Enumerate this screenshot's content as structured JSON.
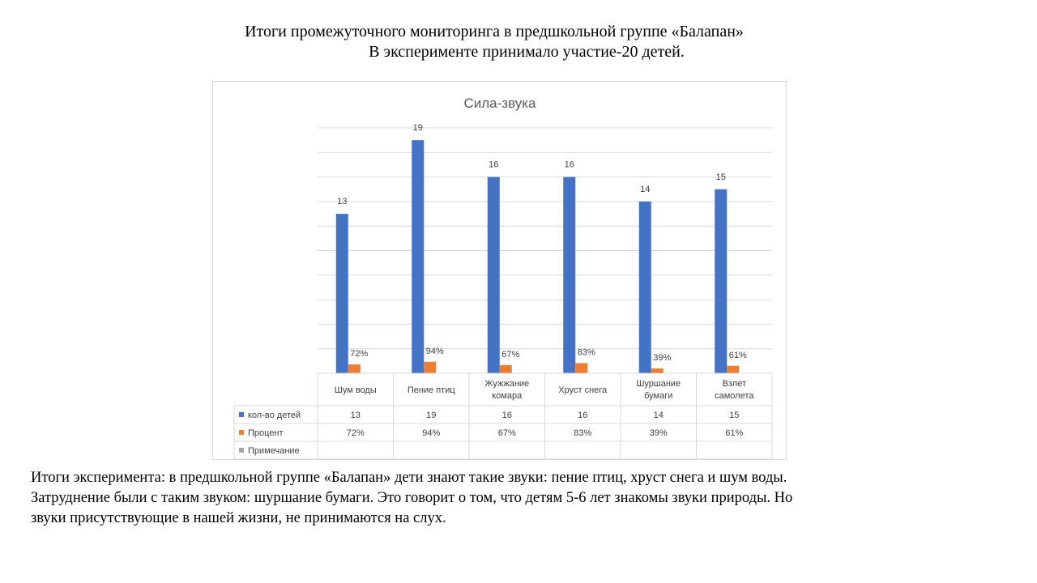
{
  "header": {
    "title": "Итоги промежуточного мониторинга в предшкольной группе «Балапан»",
    "subtitle": "В эксперименте принимало участие-20 детей."
  },
  "chart_data": {
    "type": "bar",
    "title": "Сила-звука",
    "categories": [
      [
        "Шум воды"
      ],
      [
        "Пение птиц"
      ],
      [
        "Жужжание",
        "комара"
      ],
      [
        "Хруст снега"
      ],
      [
        "Шуршание",
        "бумаги"
      ],
      [
        "Взлет",
        "самолета"
      ]
    ],
    "series": [
      {
        "name": "кол-во детей",
        "color": "#4472c4",
        "values": [
          13,
          19,
          16,
          16,
          14,
          15
        ],
        "labels": [
          "13",
          "19",
          "16",
          "16",
          "14",
          "15"
        ]
      },
      {
        "name": "Процент",
        "color": "#ed7d31",
        "values": [
          0.72,
          0.94,
          0.67,
          0.83,
          0.39,
          0.61
        ],
        "labels": [
          "72%",
          "94%",
          "67%",
          "83%",
          "39%",
          "61%"
        ]
      },
      {
        "name": "Примечание",
        "color": "#a5a5a5",
        "values": [
          null,
          null,
          null,
          null,
          null,
          null
        ],
        "labels": [
          "",
          "",
          "",
          "",
          "",
          ""
        ]
      }
    ],
    "ylim": [
      0,
      20
    ],
    "grid": true,
    "data_table": true
  },
  "conclusion": {
    "lines": [
      "Итоги эксперимента: в предшкольной группе «Балапан» дети знают такие звуки: пение птиц, хруст снега и шум воды.",
      "Затруднение были с таким звуком: шуршание бумаги. Это говорит о том, что детям 5-6 лет знакомы звуки природы. Но",
      "звуки присутствующие в нашей жизни, не принимаются на слух."
    ]
  }
}
